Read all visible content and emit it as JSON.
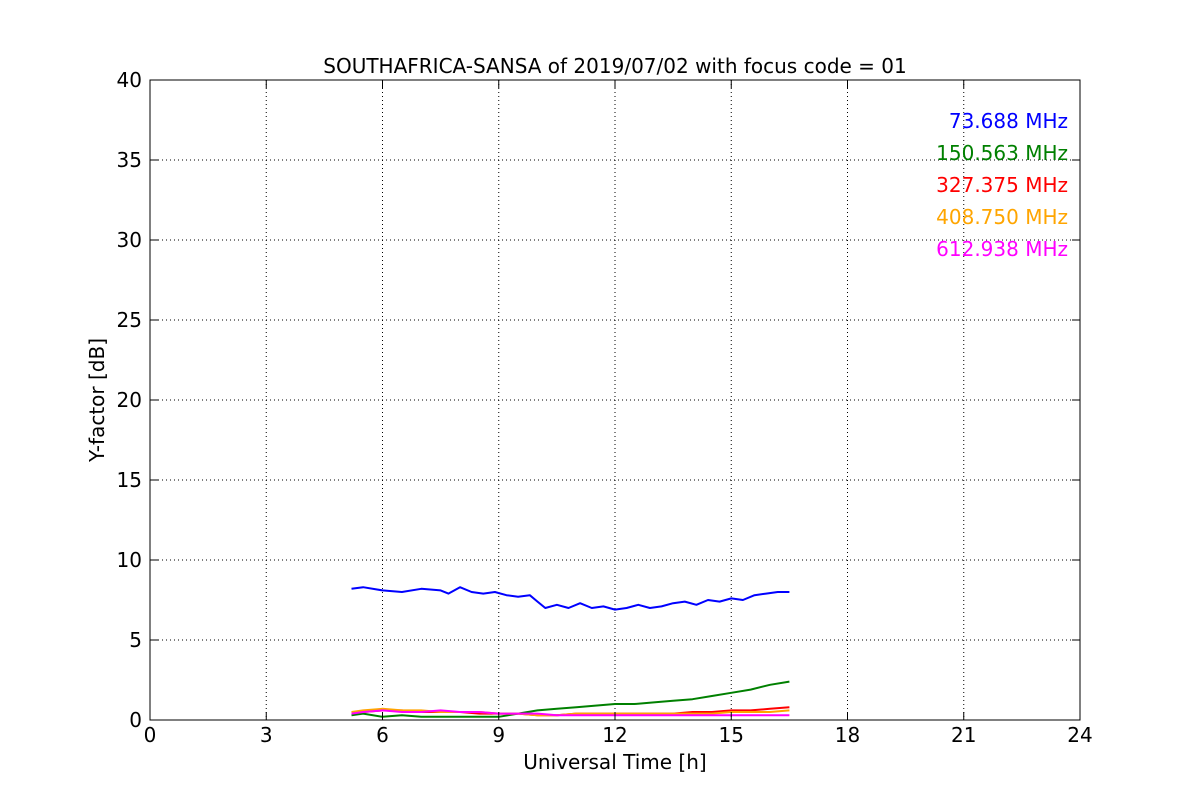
{
  "chart_data": {
    "type": "line",
    "title": "SOUTHAFRICA-SANSA of 2019/07/02 with focus code = 01",
    "xlabel": "Universal Time [h]",
    "ylabel": "Y-factor [dB]",
    "xlim": [
      0,
      24
    ],
    "ylim": [
      0,
      40
    ],
    "xticks": [
      0,
      3,
      6,
      9,
      12,
      15,
      18,
      21,
      24
    ],
    "yticks": [
      0,
      5,
      10,
      15,
      20,
      25,
      30,
      35,
      40
    ],
    "xtick_labels": [
      "0",
      "3",
      "6",
      "9",
      "12",
      "15",
      "18",
      "21",
      "24"
    ],
    "ytick_labels": [
      "0",
      "5",
      "10",
      "15",
      "20",
      "25",
      "30",
      "35",
      "40"
    ],
    "grid": true,
    "legend_position": "top-right",
    "series": [
      {
        "name": "73.688 MHz",
        "color": "#0000ff",
        "x": [
          5.2,
          5.5,
          6.0,
          6.5,
          7.0,
          7.5,
          7.7,
          8.0,
          8.3,
          8.6,
          8.9,
          9.2,
          9.5,
          9.8,
          10.0,
          10.2,
          10.5,
          10.8,
          11.1,
          11.4,
          11.7,
          12.0,
          12.3,
          12.6,
          12.9,
          13.2,
          13.5,
          13.8,
          14.1,
          14.4,
          14.7,
          15.0,
          15.3,
          15.6,
          15.9,
          16.2,
          16.5
        ],
        "values": [
          8.2,
          8.3,
          8.1,
          8.0,
          8.2,
          8.1,
          7.9,
          8.3,
          8.0,
          7.9,
          8.0,
          7.8,
          7.7,
          7.8,
          7.4,
          7.0,
          7.2,
          7.0,
          7.3,
          7.0,
          7.1,
          6.9,
          7.0,
          7.2,
          7.0,
          7.1,
          7.3,
          7.4,
          7.2,
          7.5,
          7.4,
          7.6,
          7.5,
          7.8,
          7.9,
          8.0,
          8.0
        ]
      },
      {
        "name": "150.563 MHz",
        "color": "#008000",
        "x": [
          5.2,
          5.5,
          6.0,
          6.5,
          7.0,
          7.5,
          8.0,
          8.5,
          9.0,
          9.5,
          10.0,
          10.5,
          11.0,
          11.5,
          12.0,
          12.5,
          13.0,
          13.5,
          14.0,
          14.5,
          15.0,
          15.5,
          16.0,
          16.5
        ],
        "values": [
          0.3,
          0.4,
          0.2,
          0.3,
          0.2,
          0.2,
          0.2,
          0.2,
          0.2,
          0.4,
          0.6,
          0.7,
          0.8,
          0.9,
          1.0,
          1.0,
          1.1,
          1.2,
          1.3,
          1.5,
          1.7,
          1.9,
          2.2,
          2.4
        ]
      },
      {
        "name": "327.375 MHz",
        "color": "#ff0000",
        "x": [
          5.2,
          5.5,
          6.0,
          6.5,
          7.0,
          7.5,
          8.0,
          8.5,
          9.0,
          9.5,
          10.0,
          10.5,
          11.0,
          11.5,
          12.0,
          12.5,
          13.0,
          13.5,
          14.0,
          14.5,
          15.0,
          15.5,
          16.0,
          16.5
        ],
        "values": [
          0.5,
          0.5,
          0.6,
          0.6,
          0.5,
          0.5,
          0.5,
          0.4,
          0.4,
          0.4,
          0.3,
          0.3,
          0.4,
          0.4,
          0.4,
          0.4,
          0.4,
          0.4,
          0.5,
          0.5,
          0.6,
          0.6,
          0.7,
          0.8
        ]
      },
      {
        "name": "408.750 MHz",
        "color": "#ffa500",
        "x": [
          5.2,
          5.5,
          6.0,
          6.5,
          7.0,
          7.5,
          8.0,
          8.5,
          9.0,
          9.5,
          10.0,
          10.5,
          11.0,
          11.5,
          12.0,
          12.5,
          13.0,
          13.5,
          14.0,
          14.5,
          15.0,
          15.5,
          16.0,
          16.5
        ],
        "values": [
          0.5,
          0.6,
          0.7,
          0.6,
          0.6,
          0.5,
          0.5,
          0.5,
          0.4,
          0.4,
          0.3,
          0.3,
          0.4,
          0.4,
          0.4,
          0.4,
          0.4,
          0.4,
          0.4,
          0.4,
          0.5,
          0.5,
          0.5,
          0.6
        ]
      },
      {
        "name": "612.938 MHz",
        "color": "#ff00ff",
        "x": [
          5.2,
          5.5,
          6.0,
          6.5,
          7.0,
          7.5,
          8.0,
          8.5,
          9.0,
          9.5,
          10.0,
          10.5,
          11.0,
          11.5,
          12.0,
          12.5,
          13.0,
          13.5,
          14.0,
          14.5,
          15.0,
          15.5,
          16.0,
          16.5
        ],
        "values": [
          0.4,
          0.5,
          0.6,
          0.5,
          0.5,
          0.6,
          0.5,
          0.5,
          0.4,
          0.4,
          0.4,
          0.3,
          0.3,
          0.3,
          0.3,
          0.3,
          0.3,
          0.3,
          0.3,
          0.3,
          0.3,
          0.3,
          0.3,
          0.3
        ]
      }
    ]
  }
}
